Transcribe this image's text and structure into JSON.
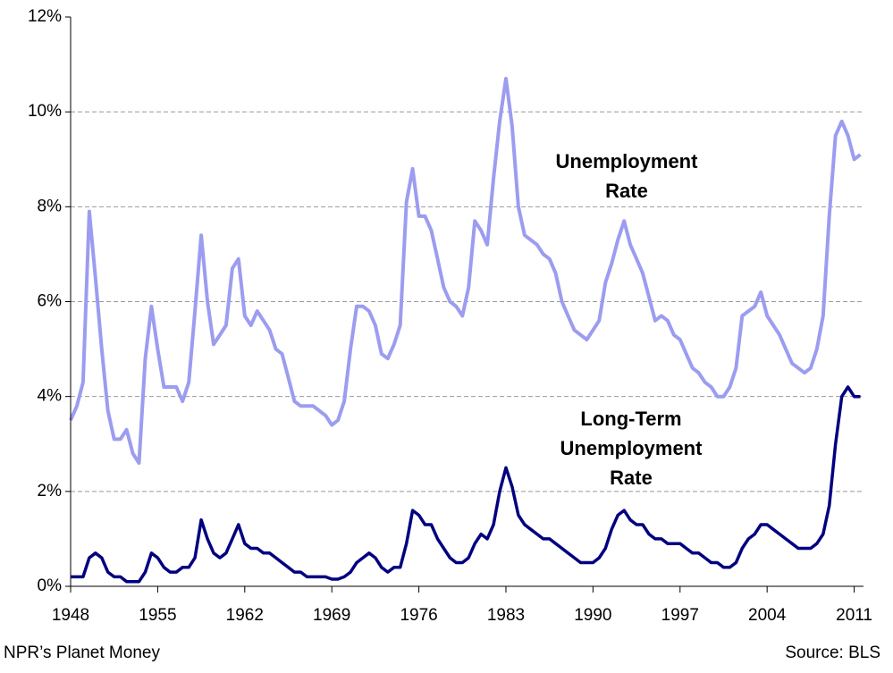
{
  "chart_data": {
    "type": "line",
    "x": [
      1948,
      1948.5,
      1949,
      1949.5,
      1950,
      1950.5,
      1951,
      1951.5,
      1952,
      1952.5,
      1953,
      1953.5,
      1954,
      1954.5,
      1955,
      1955.5,
      1956,
      1956.5,
      1957,
      1957.5,
      1958,
      1958.5,
      1959,
      1959.5,
      1960,
      1960.5,
      1961,
      1961.5,
      1962,
      1962.5,
      1963,
      1963.5,
      1964,
      1964.5,
      1965,
      1965.5,
      1966,
      1966.5,
      1967,
      1967.5,
      1968,
      1968.5,
      1969,
      1969.5,
      1970,
      1970.5,
      1971,
      1971.5,
      1972,
      1972.5,
      1973,
      1973.5,
      1974,
      1974.5,
      1975,
      1975.5,
      1976,
      1976.5,
      1977,
      1977.5,
      1978,
      1978.5,
      1979,
      1979.5,
      1980,
      1980.5,
      1981,
      1981.5,
      1982,
      1982.5,
      1983,
      1983.5,
      1984,
      1984.5,
      1985,
      1985.5,
      1986,
      1986.5,
      1987,
      1987.5,
      1988,
      1988.5,
      1989,
      1989.5,
      1990,
      1990.5,
      1991,
      1991.5,
      1992,
      1992.5,
      1993,
      1993.5,
      1994,
      1994.5,
      1995,
      1995.5,
      1996,
      1996.5,
      1997,
      1997.5,
      1998,
      1998.5,
      1999,
      1999.5,
      2000,
      2000.5,
      2001,
      2001.5,
      2002,
      2002.5,
      2003,
      2003.5,
      2004,
      2004.5,
      2005,
      2005.5,
      2006,
      2006.5,
      2007,
      2007.5,
      2008,
      2008.5,
      2009,
      2009.5,
      2010,
      2010.5,
      2011,
      2011.5
    ],
    "series": [
      {
        "name": "Unemployment Rate",
        "color": "#9c9cf0",
        "width": 4,
        "values": [
          3.5,
          3.8,
          4.3,
          7.9,
          6.5,
          5.0,
          3.7,
          3.1,
          3.1,
          3.3,
          2.8,
          2.6,
          4.8,
          5.9,
          5.0,
          4.2,
          4.2,
          4.2,
          3.9,
          4.3,
          5.8,
          7.4,
          6.0,
          5.1,
          5.3,
          5.5,
          6.7,
          6.9,
          5.7,
          5.5,
          5.8,
          5.6,
          5.4,
          5.0,
          4.9,
          4.4,
          3.9,
          3.8,
          3.8,
          3.8,
          3.7,
          3.6,
          3.4,
          3.5,
          3.9,
          5.0,
          5.9,
          5.9,
          5.8,
          5.5,
          4.9,
          4.8,
          5.1,
          5.5,
          8.1,
          8.8,
          7.8,
          7.8,
          7.5,
          6.9,
          6.3,
          6.0,
          5.9,
          5.7,
          6.3,
          7.7,
          7.5,
          7.2,
          8.6,
          9.8,
          10.7,
          9.7,
          8.0,
          7.4,
          7.3,
          7.2,
          7.0,
          6.9,
          6.6,
          6.0,
          5.7,
          5.4,
          5.3,
          5.2,
          5.4,
          5.6,
          6.4,
          6.8,
          7.3,
          7.7,
          7.2,
          6.9,
          6.6,
          6.1,
          5.6,
          5.7,
          5.6,
          5.3,
          5.2,
          4.9,
          4.6,
          4.5,
          4.3,
          4.2,
          4.0,
          4.0,
          4.2,
          4.6,
          5.7,
          5.8,
          5.9,
          6.2,
          5.7,
          5.5,
          5.3,
          5.0,
          4.7,
          4.6,
          4.5,
          4.6,
          5.0,
          5.7,
          7.8,
          9.5,
          9.8,
          9.5,
          9.0,
          9.1
        ]
      },
      {
        "name": "Long-Term Unemployment Rate",
        "color": "#000080",
        "width": 3.5,
        "values": [
          0.2,
          0.2,
          0.2,
          0.6,
          0.7,
          0.6,
          0.3,
          0.2,
          0.2,
          0.1,
          0.1,
          0.1,
          0.3,
          0.7,
          0.6,
          0.4,
          0.3,
          0.3,
          0.4,
          0.4,
          0.6,
          1.4,
          1.0,
          0.7,
          0.6,
          0.7,
          1.0,
          1.3,
          0.9,
          0.8,
          0.8,
          0.7,
          0.7,
          0.6,
          0.5,
          0.4,
          0.3,
          0.3,
          0.2,
          0.2,
          0.2,
          0.2,
          0.15,
          0.15,
          0.2,
          0.3,
          0.5,
          0.6,
          0.7,
          0.6,
          0.4,
          0.3,
          0.4,
          0.4,
          0.9,
          1.6,
          1.5,
          1.3,
          1.3,
          1.0,
          0.8,
          0.6,
          0.5,
          0.5,
          0.6,
          0.9,
          1.1,
          1.0,
          1.3,
          2.0,
          2.5,
          2.1,
          1.5,
          1.3,
          1.2,
          1.1,
          1.0,
          1.0,
          0.9,
          0.8,
          0.7,
          0.6,
          0.5,
          0.5,
          0.5,
          0.6,
          0.8,
          1.2,
          1.5,
          1.6,
          1.4,
          1.3,
          1.3,
          1.1,
          1.0,
          1.0,
          0.9,
          0.9,
          0.9,
          0.8,
          0.7,
          0.7,
          0.6,
          0.5,
          0.5,
          0.4,
          0.4,
          0.5,
          0.8,
          1.0,
          1.1,
          1.3,
          1.3,
          1.2,
          1.1,
          1.0,
          0.9,
          0.8,
          0.8,
          0.8,
          0.9,
          1.1,
          1.7,
          3.0,
          4.0,
          4.2,
          4.0,
          4.0
        ]
      }
    ],
    "annotations": [
      "Unemployment Rate",
      "Long-Term Unemployment Rate"
    ],
    "xlim": [
      1948,
      2011.75
    ],
    "xticks": [
      1948,
      1955,
      1962,
      1969,
      1976,
      1983,
      1990,
      1997,
      2004,
      2011
    ],
    "ylim": [
      0,
      12
    ],
    "yticks": [
      {
        "value": 0,
        "label": "0%"
      },
      {
        "value": 2,
        "label": "2%"
      },
      {
        "value": 4,
        "label": "4%"
      },
      {
        "value": 6,
        "label": "6%"
      },
      {
        "value": 8,
        "label": "8%"
      },
      {
        "value": 10,
        "label": "10%"
      },
      {
        "value": 12,
        "label": "12%"
      }
    ],
    "grid": true,
    "credit": "NPR’s Planet Money",
    "source": "Source: BLS"
  }
}
